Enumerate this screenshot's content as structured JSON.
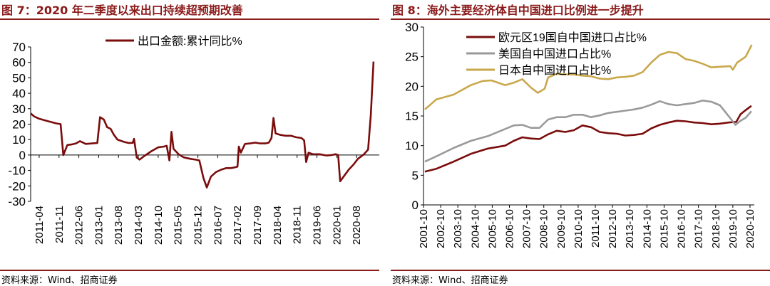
{
  "colors": {
    "heading": "#8b1a1a",
    "line_dark_red": "#7a0c0c",
    "line_gray": "#9a9a9a",
    "line_gold": "#c9a84c"
  },
  "chart_data": [
    {
      "type": "line",
      "title": "图 7：2020 年二季度以来出口持续超预期改善",
      "source": "资料来源：Wind、招商证券",
      "ylim": [
        -30,
        70
      ],
      "yticks": [
        -30,
        -20,
        -10,
        0,
        10,
        20,
        30,
        40,
        50,
        60,
        70
      ],
      "categories": [
        "2011-04",
        "2011-11",
        "2012-06",
        "2013-01",
        "2013-08",
        "2014-03",
        "2014-10",
        "2015-05",
        "2015-12",
        "2016-07",
        "2017-02",
        "2017-09",
        "2018-04",
        "2018-11",
        "2019-06",
        "2020-01",
        "2020-08"
      ],
      "legend_position": "top-center",
      "series": [
        {
          "name": "出口金额:累计同比%",
          "points": [
            [
              2011.0,
              27
            ],
            [
              2011.1,
              25
            ],
            [
              2011.25,
              23.5
            ],
            [
              2011.5,
              22
            ],
            [
              2011.75,
              20.5
            ],
            [
              2011.88,
              20
            ],
            [
              2011.96,
              0
            ],
            [
              2012.08,
              6.5
            ],
            [
              2012.2,
              6.8
            ],
            [
              2012.33,
              7.5
            ],
            [
              2012.45,
              9
            ],
            [
              2012.62,
              7.2
            ],
            [
              2012.8,
              7.5
            ],
            [
              2012.96,
              7.8
            ],
            [
              2013.04,
              24.5
            ],
            [
              2013.15,
              23
            ],
            [
              2013.25,
              18
            ],
            [
              2013.35,
              17
            ],
            [
              2013.45,
              13
            ],
            [
              2013.55,
              10
            ],
            [
              2013.75,
              8.5
            ],
            [
              2013.88,
              7.8
            ],
            [
              2014.0,
              7.9
            ],
            [
              2014.04,
              10.5
            ],
            [
              2014.12,
              -1.6
            ],
            [
              2014.2,
              -3
            ],
            [
              2014.35,
              -0.5
            ],
            [
              2014.55,
              2.5
            ],
            [
              2014.75,
              5
            ],
            [
              2014.92,
              5.5
            ],
            [
              2015.0,
              6
            ],
            [
              2015.08,
              -3.5
            ],
            [
              2015.14,
              15
            ],
            [
              2015.2,
              4
            ],
            [
              2015.35,
              0.5
            ],
            [
              2015.5,
              -1.5
            ],
            [
              2015.7,
              -2.5
            ],
            [
              2015.85,
              -3
            ],
            [
              2015.96,
              -3.5
            ],
            [
              2016.08,
              -15
            ],
            [
              2016.18,
              -21
            ],
            [
              2016.3,
              -14
            ],
            [
              2016.45,
              -11
            ],
            [
              2016.6,
              -9.5
            ],
            [
              2016.75,
              -8.5
            ],
            [
              2016.88,
              -8.5
            ],
            [
              2017.0,
              -8
            ],
            [
              2017.08,
              -7.5
            ],
            [
              2017.12,
              5.5
            ],
            [
              2017.18,
              1.5
            ],
            [
              2017.3,
              7.2
            ],
            [
              2017.45,
              7.5
            ],
            [
              2017.6,
              8
            ],
            [
              2017.75,
              7.5
            ],
            [
              2017.9,
              7.5
            ],
            [
              2018.0,
              8
            ],
            [
              2018.08,
              11
            ],
            [
              2018.14,
              24
            ],
            [
              2018.2,
              14
            ],
            [
              2018.35,
              13
            ],
            [
              2018.5,
              12.5
            ],
            [
              2018.65,
              12.5
            ],
            [
              2018.8,
              11.5
            ],
            [
              2018.96,
              11
            ],
            [
              2019.04,
              9.5
            ],
            [
              2019.1,
              -4.5
            ],
            [
              2019.17,
              1.5
            ],
            [
              2019.3,
              0.5
            ],
            [
              2019.5,
              0.5
            ],
            [
              2019.7,
              -0.3
            ],
            [
              2019.85,
              0
            ],
            [
              2019.96,
              0.5
            ],
            [
              2020.04,
              0
            ],
            [
              2020.1,
              -17
            ],
            [
              2020.2,
              -14
            ],
            [
              2020.35,
              -9.5
            ],
            [
              2020.5,
              -6
            ],
            [
              2020.62,
              -2.5
            ],
            [
              2020.8,
              0.5
            ],
            [
              2020.92,
              3.5
            ],
            [
              2021.0,
              26
            ],
            [
              2021.08,
              60.5
            ]
          ]
        }
      ]
    },
    {
      "type": "line",
      "title": "图 8：海外主要经济体自中国进口比例进一步提升",
      "source": "资料来源：Wind、招商证券",
      "ylim": [
        0,
        30
      ],
      "yticks": [
        0,
        5,
        10,
        15,
        20,
        25,
        30
      ],
      "categories": [
        "2001-10",
        "2002-10",
        "2003-10",
        "2004-10",
        "2005-10",
        "2006-10",
        "2007-10",
        "2008-10",
        "2009-10",
        "2010-10",
        "2011-10",
        "2012-10",
        "2013-10",
        "2014-10",
        "2015-10",
        "2016-10",
        "2017-10",
        "2018-10",
        "2019-10",
        "2020-10"
      ],
      "legend_position": "top-left",
      "series": [
        {
          "name": "欧元区19国自中国进口占比%",
          "color_key": "line_dark_red",
          "points": [
            [
              2001.83,
              5.6
            ],
            [
              2002.5,
              6.1
            ],
            [
              2003.5,
              7.3
            ],
            [
              2004.5,
              8.6
            ],
            [
              2005.5,
              9.5
            ],
            [
              2006.5,
              10.0
            ],
            [
              2007.0,
              10.8
            ],
            [
              2007.5,
              11.4
            ],
            [
              2008.0,
              11.2
            ],
            [
              2008.5,
              11.1
            ],
            [
              2009.0,
              11.9
            ],
            [
              2009.5,
              12.5
            ],
            [
              2010.0,
              12.3
            ],
            [
              2010.5,
              12.6
            ],
            [
              2011.0,
              13.4
            ],
            [
              2011.5,
              13.1
            ],
            [
              2012.0,
              12.3
            ],
            [
              2012.5,
              12.1
            ],
            [
              2013.0,
              12.0
            ],
            [
              2013.5,
              11.7
            ],
            [
              2014.0,
              11.8
            ],
            [
              2014.5,
              12.0
            ],
            [
              2015.0,
              12.9
            ],
            [
              2015.5,
              13.5
            ],
            [
              2016.0,
              13.9
            ],
            [
              2016.5,
              14.2
            ],
            [
              2017.0,
              14.1
            ],
            [
              2017.5,
              13.9
            ],
            [
              2018.0,
              13.8
            ],
            [
              2018.5,
              13.6
            ],
            [
              2019.0,
              13.7
            ],
            [
              2019.5,
              13.9
            ],
            [
              2019.95,
              14.0
            ],
            [
              2020.2,
              15.3
            ],
            [
              2020.5,
              16.0
            ],
            [
              2020.83,
              16.7
            ]
          ]
        },
        {
          "name": "美国自中国进口占比%",
          "color_key": "line_gray",
          "points": [
            [
              2001.83,
              7.3
            ],
            [
              2002.5,
              8.2
            ],
            [
              2003.5,
              9.6
            ],
            [
              2004.5,
              10.8
            ],
            [
              2005.5,
              11.6
            ],
            [
              2006.5,
              12.8
            ],
            [
              2007.0,
              13.4
            ],
            [
              2007.5,
              13.5
            ],
            [
              2008.0,
              13.0
            ],
            [
              2008.5,
              13.0
            ],
            [
              2009.0,
              14.4
            ],
            [
              2009.5,
              14.8
            ],
            [
              2010.0,
              14.8
            ],
            [
              2010.5,
              15.2
            ],
            [
              2011.0,
              15.2
            ],
            [
              2011.5,
              14.8
            ],
            [
              2012.0,
              15.1
            ],
            [
              2012.5,
              15.5
            ],
            [
              2013.0,
              15.7
            ],
            [
              2013.5,
              15.9
            ],
            [
              2014.0,
              16.1
            ],
            [
              2014.5,
              16.4
            ],
            [
              2015.0,
              16.9
            ],
            [
              2015.5,
              17.5
            ],
            [
              2016.0,
              17.0
            ],
            [
              2016.5,
              16.8
            ],
            [
              2017.0,
              17.0
            ],
            [
              2017.5,
              17.2
            ],
            [
              2018.0,
              17.6
            ],
            [
              2018.5,
              17.4
            ],
            [
              2019.0,
              16.8
            ],
            [
              2019.5,
              15.0
            ],
            [
              2019.9,
              13.5
            ],
            [
              2020.2,
              14.2
            ],
            [
              2020.5,
              14.7
            ],
            [
              2020.83,
              15.8
            ]
          ]
        },
        {
          "name": "日本自中国进口占比%",
          "color_key": "line_gold",
          "points": [
            [
              2001.83,
              16.1
            ],
            [
              2002.5,
              17.8
            ],
            [
              2003.5,
              18.6
            ],
            [
              2004.5,
              20.2
            ],
            [
              2005.2,
              20.9
            ],
            [
              2005.7,
              21.0
            ],
            [
              2006.5,
              20.2
            ],
            [
              2007.0,
              20.6
            ],
            [
              2007.5,
              21.2
            ],
            [
              2008.0,
              19.8
            ],
            [
              2008.4,
              18.9
            ],
            [
              2008.8,
              19.6
            ],
            [
              2009.0,
              21.5
            ],
            [
              2009.5,
              22.1
            ],
            [
              2010.0,
              22.0
            ],
            [
              2010.5,
              22.0
            ],
            [
              2011.0,
              21.8
            ],
            [
              2011.5,
              21.7
            ],
            [
              2012.0,
              21.3
            ],
            [
              2012.5,
              21.2
            ],
            [
              2013.0,
              21.5
            ],
            [
              2013.5,
              21.6
            ],
            [
              2014.0,
              21.8
            ],
            [
              2014.5,
              22.4
            ],
            [
              2015.0,
              24.0
            ],
            [
              2015.5,
              25.3
            ],
            [
              2016.0,
              25.8
            ],
            [
              2016.5,
              25.6
            ],
            [
              2017.0,
              24.6
            ],
            [
              2017.5,
              24.3
            ],
            [
              2018.0,
              23.8
            ],
            [
              2018.5,
              23.2
            ],
            [
              2019.0,
              23.3
            ],
            [
              2019.6,
              23.4
            ],
            [
              2019.75,
              22.8
            ],
            [
              2020.0,
              24.0
            ],
            [
              2020.5,
              25.0
            ],
            [
              2020.85,
              27.0
            ]
          ]
        }
      ]
    }
  ]
}
